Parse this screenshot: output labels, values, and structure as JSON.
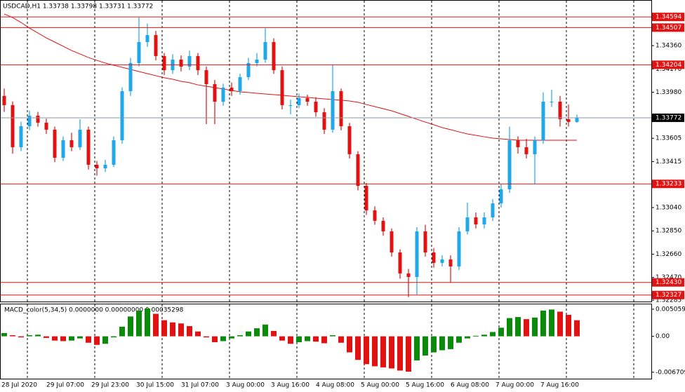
{
  "chart_data": [
    {
      "type": "candlestick",
      "title": "USDCAD,H1  1.33738 1.33798 1.33731 1.33772",
      "up_color": "#1ea7ea",
      "down_color": "#e01212",
      "ma_color": "#e01212",
      "level_color": "#e01212",
      "open": [
        1.3395,
        1.33875,
        1.33532,
        1.33703,
        1.33789,
        1.33732,
        1.33675,
        1.33446,
        1.33589,
        1.33532,
        1.33675,
        1.33389,
        1.3336,
        1.33389,
        1.33589,
        1.33989,
        1.34218,
        1.34389,
        1.34446,
        1.34275,
        1.3416,
        1.34246,
        1.34189,
        1.34275,
        1.3416,
        1.34046,
        1.33903,
        1.34018,
        1.33989,
        1.34103,
        1.34218,
        1.34246,
        1.34389,
        1.3416,
        1.33875,
        1.33875,
        1.33932,
        1.33903,
        1.33817,
        1.33675,
        1.33989,
        1.33703,
        1.33475,
        1.33217,
        1.33017,
        1.32932,
        1.32846,
        1.32674,
        1.32503,
        1.32474,
        1.32846,
        1.32674,
        1.32589,
        1.32617,
        1.3256,
        1.32846,
        1.3296,
        1.32903,
        1.3296,
        1.33074,
        1.33189,
        1.33589,
        1.33532,
        1.33475,
        1.33589,
        1.33903,
        1.33903,
        1.3376,
        1.33738
      ],
      "high": [
        1.3401,
        1.33905,
        1.3374,
        1.3383,
        1.3382,
        1.33765,
        1.337,
        1.3362,
        1.3365,
        1.3376,
        1.337,
        1.3342,
        1.3343,
        1.3362,
        1.3402,
        1.3426,
        1.3459,
        1.3454,
        1.3448,
        1.343,
        1.3429,
        1.3428,
        1.3432,
        1.343,
        1.3419,
        1.3408,
        1.3405,
        1.3406,
        1.3413,
        1.3426,
        1.343,
        1.345,
        1.3442,
        1.3419,
        1.3392,
        1.3397,
        1.3396,
        1.3394,
        1.3385,
        1.34204,
        1.3401,
        1.3373,
        1.335,
        1.3324,
        1.3305,
        1.3296,
        1.3287,
        1.327,
        1.3254,
        1.3288,
        1.329,
        1.3271,
        1.3265,
        1.3265,
        1.3288,
        1.3308,
        1.33,
        1.33,
        1.3311,
        1.3323,
        1.337,
        1.3362,
        1.336,
        1.3362,
        1.3398,
        1.34,
        1.3395,
        1.3388,
        1.33798
      ],
      "low": [
        1.3382,
        1.3348,
        1.335,
        1.3367,
        1.337,
        1.3364,
        1.3341,
        1.3342,
        1.335,
        1.3351,
        1.3335,
        1.333,
        1.3333,
        1.3337,
        1.3356,
        1.3395,
        1.3419,
        1.3435,
        1.3424,
        1.3412,
        1.3413,
        1.3415,
        1.3416,
        1.3412,
        1.3372,
        1.3372,
        1.3387,
        1.3395,
        1.3396,
        1.3408,
        1.3419,
        1.3422,
        1.3413,
        1.3384,
        1.338,
        1.3385,
        1.3387,
        1.3378,
        1.3364,
        1.3365,
        1.3367,
        1.3344,
        1.3318,
        1.3298,
        1.329,
        1.3281,
        1.3264,
        1.3246,
        1.3231,
        1.3233,
        1.3264,
        1.3255,
        1.3256,
        1.3243,
        1.3253,
        1.3282,
        1.3287,
        1.3287,
        1.3293,
        1.3304,
        1.3316,
        1.3348,
        1.3344,
        1.33233,
        1.3356,
        1.3386,
        1.337,
        1.337,
        1.33731
      ],
      "close": [
        1.33875,
        1.33532,
        1.33703,
        1.33789,
        1.33732,
        1.33675,
        1.33446,
        1.33589,
        1.33532,
        1.33675,
        1.33389,
        1.3336,
        1.33389,
        1.33589,
        1.33989,
        1.34218,
        1.34389,
        1.34446,
        1.34275,
        1.3416,
        1.34246,
        1.34189,
        1.34275,
        1.3416,
        1.34046,
        1.33903,
        1.34018,
        1.33989,
        1.34103,
        1.34218,
        1.34246,
        1.34389,
        1.3416,
        1.33875,
        1.33875,
        1.33932,
        1.33903,
        1.33817,
        1.33675,
        1.33989,
        1.33703,
        1.33475,
        1.33217,
        1.33017,
        1.32932,
        1.32846,
        1.32674,
        1.32503,
        1.32474,
        1.32846,
        1.32674,
        1.32589,
        1.32617,
        1.3256,
        1.32846,
        1.3296,
        1.32903,
        1.3296,
        1.33074,
        1.33189,
        1.33589,
        1.33532,
        1.33475,
        1.33589,
        1.33903,
        1.33903,
        1.3376,
        1.33738,
        1.33772
      ],
      "ma": [
        1.34618,
        1.34589,
        1.34549,
        1.34503,
        1.34463,
        1.34423,
        1.34389,
        1.34355,
        1.3432,
        1.34292,
        1.34263,
        1.3424,
        1.34218,
        1.342,
        1.34183,
        1.34166,
        1.34149,
        1.34132,
        1.34115,
        1.34098,
        1.34086,
        1.34069,
        1.34058,
        1.3404,
        1.34029,
        1.34018,
        1.34006,
        1.33995,
        1.33983,
        1.33978,
        1.33972,
        1.33966,
        1.3396,
        1.33955,
        1.33949,
        1.33943,
        1.33938,
        1.33932,
        1.33926,
        1.3392,
        1.33915,
        1.33909,
        1.33898,
        1.3388,
        1.33863,
        1.33846,
        1.33829,
        1.33806,
        1.33783,
        1.3376,
        1.33737,
        1.33715,
        1.33692,
        1.33675,
        1.33657,
        1.3364,
        1.33629,
        1.33617,
        1.33606,
        1.336,
        1.33595,
        1.33589,
        1.33589,
        1.33589,
        1.33589,
        1.33589,
        1.33589,
        1.33589,
        1.33589
      ],
      "ylim": [
        1.32274,
        1.34732
      ],
      "yticks": [
        1.32285,
        {
          "value": 1.3247,
          "label": "1.32470"
        },
        {
          "value": 1.3266,
          "label": "1.32660"
        },
        {
          "value": 1.3285,
          "label": "1.32850"
        },
        {
          "value": 1.3304,
          "label": "1.33040"
        },
        1.33415,
        1.33605,
        {
          "value": 1.3398,
          "label": "1.33980"
        },
        {
          "value": 1.3417,
          "label": "1.34170"
        },
        {
          "value": 1.3436,
          "label": "1.34360"
        }
      ],
      "levels": [
        1.34594,
        1.34507,
        1.34204,
        1.33233,
        {
          "value": 1.3243,
          "label": "1.32430"
        },
        1.32327
      ],
      "current": 1.33772
    },
    {
      "type": "histogram",
      "title": "MACD_color(5,34,5) 0.0000000 0.00000000 0.00035298",
      "up_color": "#0b8a0b",
      "down_color": "#e01212",
      "values": [
        0.0006,
        0.0002,
        -0.0002,
        0.0002,
        0.0003,
        -0.0003,
        -0.0008,
        -0.0009,
        -0.0008,
        -0.0004,
        -0.0012,
        -0.0016,
        -0.0014,
        -0.0002,
        0.0018,
        0.0037,
        0.0048,
        0.0052,
        0.0042,
        0.003,
        0.0026,
        0.0024,
        0.0019,
        0.0009,
        -0.0002,
        -0.0011,
        -0.0009,
        -0.0004,
        0.0002,
        0.0009,
        0.0015,
        0.0022,
        0.001,
        -0.0008,
        -0.0014,
        -0.0011,
        -0.0009,
        -0.001,
        -0.0013,
        0.0002,
        -0.0012,
        -0.003,
        -0.0044,
        -0.0052,
        -0.0056,
        -0.0058,
        -0.006,
        -0.0064,
        -0.0066,
        -0.0045,
        -0.0036,
        -0.003,
        -0.0026,
        -0.0024,
        -0.0012,
        -0.0004,
        0.0001,
        0.0003,
        0.0008,
        0.0016,
        0.0034,
        0.0036,
        0.0032,
        0.0035,
        0.0048,
        0.005,
        0.0046,
        0.004,
        0.003
      ],
      "ylim": [
        -0.00791,
        0.005965
      ],
      "yticks": [
        {
          "value": -0.006709,
          "label": "-0.006709"
        },
        {
          "value": 0,
          "label": "0.00"
        },
        {
          "value": 0.005059,
          "label": "0.0050590"
        }
      ],
      "x_labels": [
        "28 Jul 2020",
        "29 Jul 07:00",
        "29 Jul 23:00",
        "30 Jul 15:00",
        "31 Jul 07:00",
        "3 Aug 00:00",
        "3 Aug 16:00",
        "4 Aug 08:00",
        "5 Aug 00:00",
        "5 Aug 16:00",
        "6 Aug 08:00",
        "7 Aug 00:00",
        "7 Aug 16:00"
      ]
    }
  ]
}
